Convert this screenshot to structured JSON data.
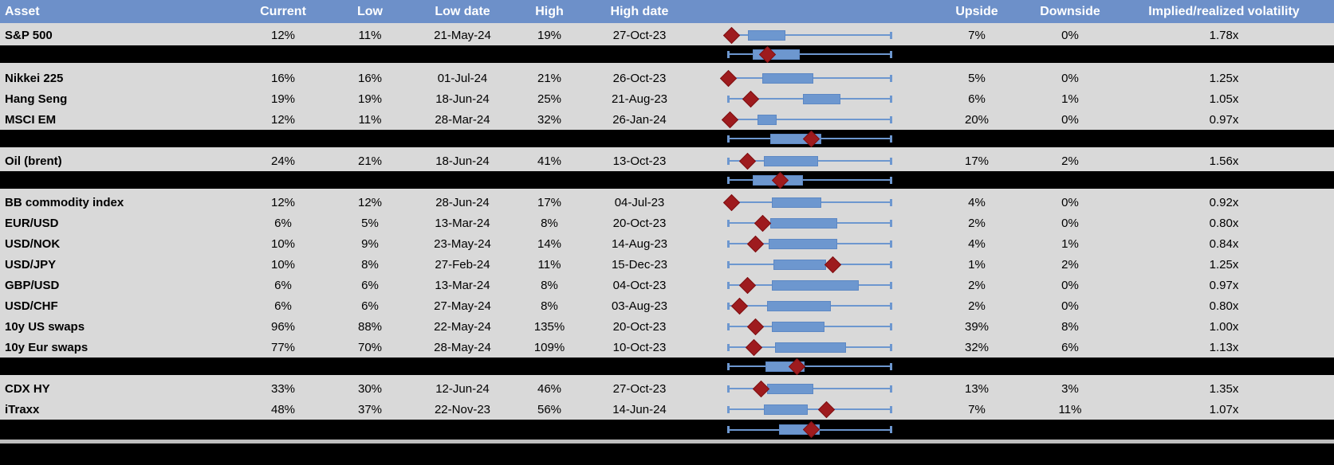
{
  "header": {
    "columns": [
      "Asset",
      "Current",
      "Low",
      "Low date",
      "High",
      "High date",
      "",
      "Upside",
      "Downside",
      "Implied/realized volatility"
    ]
  },
  "colors": {
    "header_bg": "#6D90C9",
    "header_text": "#FFFFFF",
    "row_bg": "#D9D9D9",
    "band_bg": "#000000",
    "box_fill": "#6D97CF",
    "box_edge": "#5D88C4",
    "whisker": "#6D97CF",
    "marker_fill": "#9E1B1E",
    "marker_edge": "#7E1114",
    "separator": "#BFBFBF"
  },
  "chart_data": {
    "type": "table",
    "embedded_chart_type": "boxplot",
    "note": "Each row shows implied volatility stats; whisker spans the low-high range [0,1], box = middle range, diamond marker = current level as a fraction of the low-high range. Black aggregate bands show a group-level boxplot with no text.",
    "rows": [
      {
        "kind": "asset",
        "asset": "S&P 500",
        "current": "12%",
        "low": "11%",
        "low_date": "21-May-24",
        "high": "19%",
        "high_date": "27-Oct-23",
        "upside": "7%",
        "downside": "0%",
        "implied_realized": "1.78x",
        "boxplot": {
          "whisker": [
            0,
            1
          ],
          "box": [
            0.12,
            0.34
          ],
          "marker": 0.02
        }
      },
      {
        "kind": "aggregate",
        "boxplot": {
          "whisker": [
            0,
            1
          ],
          "box": [
            0.15,
            0.43
          ],
          "marker": 0.24
        }
      },
      {
        "kind": "asset",
        "asset": "Nikkei 225",
        "current": "16%",
        "low": "16%",
        "low_date": "01-Jul-24",
        "high": "21%",
        "high_date": "26-Oct-23",
        "upside": "5%",
        "downside": "0%",
        "implied_realized": "1.25x",
        "boxplot": {
          "whisker": [
            0,
            1
          ],
          "box": [
            0.21,
            0.51
          ],
          "marker": 0.0
        }
      },
      {
        "kind": "asset",
        "asset": "Hang Seng",
        "current": "19%",
        "low": "19%",
        "low_date": "18-Jun-24",
        "high": "25%",
        "high_date": "21-Aug-23",
        "upside": "6%",
        "downside": "1%",
        "implied_realized": "1.05x",
        "boxplot": {
          "whisker": [
            0,
            1
          ],
          "box": [
            0.46,
            0.68
          ],
          "marker": 0.14
        }
      },
      {
        "kind": "asset",
        "asset": "MSCI EM",
        "current": "12%",
        "low": "11%",
        "low_date": "28-Mar-24",
        "high": "32%",
        "high_date": "26-Jan-24",
        "upside": "20%",
        "downside": "0%",
        "implied_realized": "0.97x",
        "boxplot": {
          "whisker": [
            0,
            1
          ],
          "box": [
            0.18,
            0.29
          ],
          "marker": 0.01
        }
      },
      {
        "kind": "aggregate",
        "boxplot": {
          "whisker": [
            0,
            1
          ],
          "box": [
            0.26,
            0.56
          ],
          "marker": 0.51
        }
      },
      {
        "kind": "asset",
        "asset": "Oil (brent)",
        "current": "24%",
        "low": "21%",
        "low_date": "18-Jun-24",
        "high": "41%",
        "high_date": "13-Oct-23",
        "upside": "17%",
        "downside": "2%",
        "implied_realized": "1.56x",
        "boxplot": {
          "whisker": [
            0,
            1
          ],
          "box": [
            0.22,
            0.54
          ],
          "marker": 0.12
        }
      },
      {
        "kind": "aggregate",
        "boxplot": {
          "whisker": [
            0,
            1
          ],
          "box": [
            0.15,
            0.45
          ],
          "marker": 0.32
        }
      },
      {
        "kind": "asset",
        "asset": "BB commodity index",
        "current": "12%",
        "low": "12%",
        "low_date": "28-Jun-24",
        "high": "17%",
        "high_date": "04-Jul-23",
        "upside": "4%",
        "downside": "0%",
        "implied_realized": "0.92x",
        "boxplot": {
          "whisker": [
            0,
            1
          ],
          "box": [
            0.27,
            0.56
          ],
          "marker": 0.02
        }
      },
      {
        "kind": "asset",
        "asset": "EUR/USD",
        "current": "6%",
        "low": "5%",
        "low_date": "13-Mar-24",
        "high": "8%",
        "high_date": "20-Oct-23",
        "upside": "2%",
        "downside": "0%",
        "implied_realized": "0.80x",
        "boxplot": {
          "whisker": [
            0,
            1
          ],
          "box": [
            0.26,
            0.66
          ],
          "marker": 0.21
        }
      },
      {
        "kind": "asset",
        "asset": "USD/NOK",
        "current": "10%",
        "low": "9%",
        "low_date": "23-May-24",
        "high": "14%",
        "high_date": "14-Aug-23",
        "upside": "4%",
        "downside": "1%",
        "implied_realized": "0.84x",
        "boxplot": {
          "whisker": [
            0,
            1
          ],
          "box": [
            0.25,
            0.66
          ],
          "marker": 0.17
        }
      },
      {
        "kind": "asset",
        "asset": "USD/JPY",
        "current": "10%",
        "low": "8%",
        "low_date": "27-Feb-24",
        "high": "11%",
        "high_date": "15-Dec-23",
        "upside": "1%",
        "downside": "2%",
        "implied_realized": "1.25x",
        "boxplot": {
          "whisker": [
            0,
            1
          ],
          "box": [
            0.28,
            0.59
          ],
          "marker": 0.64
        }
      },
      {
        "kind": "asset",
        "asset": "GBP/USD",
        "current": "6%",
        "low": "6%",
        "low_date": "13-Mar-24",
        "high": "8%",
        "high_date": "04-Oct-23",
        "upside": "2%",
        "downside": "0%",
        "implied_realized": "0.97x",
        "boxplot": {
          "whisker": [
            0,
            1
          ],
          "box": [
            0.27,
            0.79
          ],
          "marker": 0.12
        }
      },
      {
        "kind": "asset",
        "asset": "USD/CHF",
        "current": "6%",
        "low": "6%",
        "low_date": "27-May-24",
        "high": "8%",
        "high_date": "03-Aug-23",
        "upside": "2%",
        "downside": "0%",
        "implied_realized": "0.80x",
        "boxplot": {
          "whisker": [
            0,
            1
          ],
          "box": [
            0.24,
            0.62
          ],
          "marker": 0.07
        }
      },
      {
        "kind": "asset",
        "asset": "10y US swaps",
        "current": "96%",
        "low": "88%",
        "low_date": "22-May-24",
        "high": "135%",
        "high_date": "20-Oct-23",
        "upside": "39%",
        "downside": "8%",
        "implied_realized": "1.00x",
        "boxplot": {
          "whisker": [
            0,
            1
          ],
          "box": [
            0.27,
            0.58
          ],
          "marker": 0.17
        }
      },
      {
        "kind": "asset",
        "asset": "10y Eur swaps",
        "current": "77%",
        "low": "70%",
        "low_date": "28-May-24",
        "high": "109%",
        "high_date": "10-Oct-23",
        "upside": "32%",
        "downside": "6%",
        "implied_realized": "1.13x",
        "boxplot": {
          "whisker": [
            0,
            1
          ],
          "box": [
            0.29,
            0.71
          ],
          "marker": 0.16
        }
      },
      {
        "kind": "aggregate",
        "boxplot": {
          "whisker": [
            0,
            1
          ],
          "box": [
            0.23,
            0.46
          ],
          "marker": 0.42
        }
      },
      {
        "kind": "asset",
        "asset": "CDX HY",
        "current": "33%",
        "low": "30%",
        "low_date": "12-Jun-24",
        "high": "46%",
        "high_date": "27-Oct-23",
        "upside": "13%",
        "downside": "3%",
        "implied_realized": "1.35x",
        "boxplot": {
          "whisker": [
            0,
            1
          ],
          "box": [
            0.24,
            0.51
          ],
          "marker": 0.2
        }
      },
      {
        "kind": "asset",
        "asset": "iTraxx",
        "current": "48%",
        "low": "37%",
        "low_date": "22-Nov-23",
        "high": "56%",
        "high_date": "14-Jun-24",
        "upside": "7%",
        "downside": "11%",
        "implied_realized": "1.07x",
        "boxplot": {
          "whisker": [
            0,
            1
          ],
          "box": [
            0.22,
            0.48
          ],
          "marker": 0.6
        }
      },
      {
        "kind": "aggregate",
        "boxplot": {
          "whisker": [
            0,
            1
          ],
          "box": [
            0.31,
            0.55
          ],
          "marker": 0.51
        }
      }
    ]
  }
}
